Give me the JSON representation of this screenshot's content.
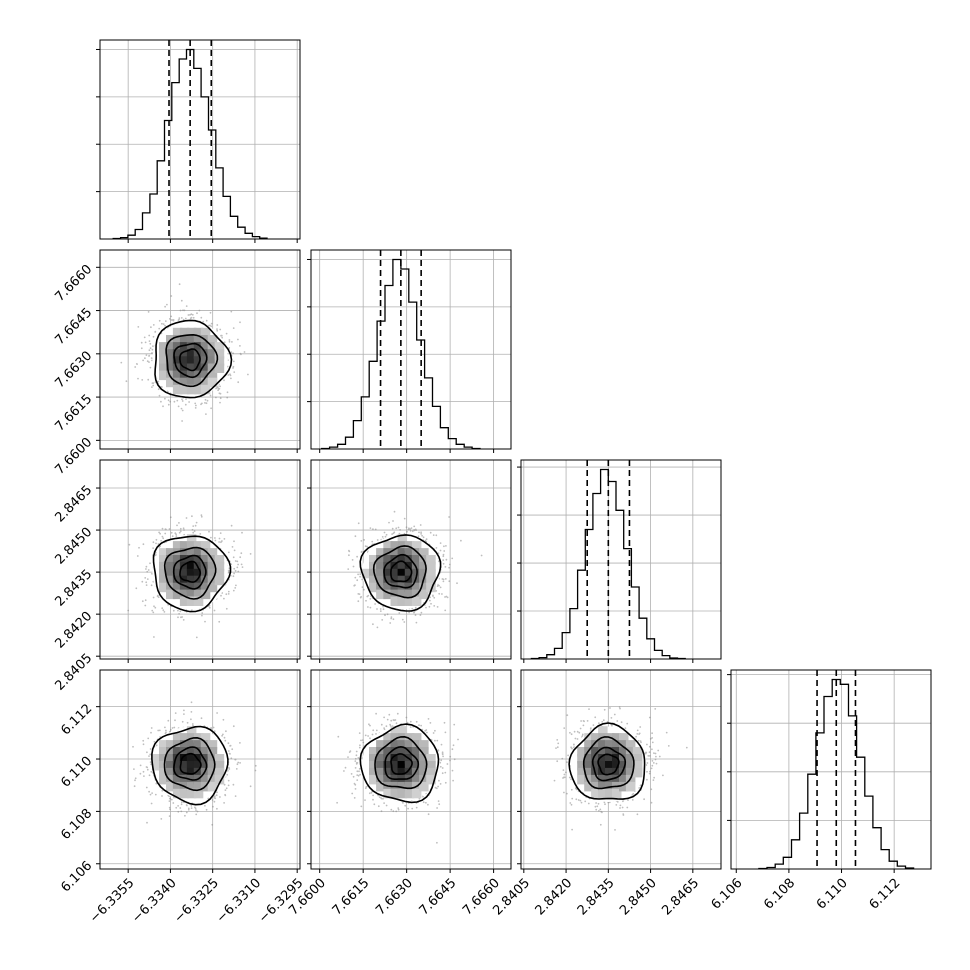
{
  "chart_data": {
    "type": "corner",
    "description_free": true,
    "grid": true,
    "n_params": 4,
    "colors": {
      "axes": "#000000",
      "grid": "#b0b0b0",
      "scatter": "#8a8a8a",
      "density_max": "#000000"
    },
    "params": [
      {
        "range": [
          -6.3365,
          -6.3294
        ],
        "ticks": [
          -6.3355,
          -6.334,
          -6.3325,
          -6.331,
          -6.3295
        ],
        "tick_labels": [
          "−6.3355",
          "−6.3340",
          "−6.3325",
          "−6.3310",
          "−6.3295"
        ],
        "mean": -6.3333,
        "sd": 0.00065,
        "quantiles": [
          -6.33405,
          -6.3333,
          -6.33255
        ]
      },
      {
        "range": [
          7.6597,
          7.6666
        ],
        "ticks": [
          7.66,
          7.6615,
          7.663,
          7.6645,
          7.666
        ],
        "tick_labels": [
          "7.6600",
          "7.6615",
          "7.6630",
          "7.6645",
          "7.6660"
        ],
        "mean": 7.6628,
        "sd": 0.00065,
        "quantiles": [
          7.6621,
          7.6628,
          7.6635
        ]
      },
      {
        "range": [
          2.8404,
          2.8475
        ],
        "ticks": [
          2.8405,
          2.842,
          2.8435,
          2.845,
          2.8465
        ],
        "tick_labels": [
          "2.8405",
          "2.8420",
          "2.8435",
          "2.8450",
          "2.8465"
        ],
        "mean": 2.8435,
        "sd": 0.00065,
        "quantiles": [
          2.84275,
          2.8435,
          2.84425
        ]
      },
      {
        "range": [
          6.1058,
          6.1134
        ],
        "ticks": [
          6.106,
          6.108,
          6.11,
          6.112
        ],
        "tick_labels": [
          "6.106",
          "6.108",
          "6.110",
          "6.112"
        ],
        "mean": 6.1098,
        "sd": 0.0007,
        "quantiles": [
          6.10907,
          6.1098,
          6.11053
        ]
      }
    ],
    "histograms": [
      [
        1,
        3,
        8,
        20,
        55,
        95,
        165,
        250,
        330,
        380,
        400,
        360,
        300,
        230,
        150,
        90,
        48,
        25,
        12,
        5,
        2
      ],
      [
        1,
        4,
        10,
        25,
        60,
        110,
        185,
        270,
        345,
        400,
        380,
        310,
        230,
        150,
        90,
        45,
        22,
        10,
        4,
        1
      ],
      [
        1,
        3,
        9,
        22,
        55,
        105,
        185,
        270,
        345,
        395,
        370,
        310,
        230,
        150,
        85,
        42,
        18,
        7,
        2,
        1
      ],
      [
        1,
        3,
        10,
        24,
        60,
        115,
        195,
        280,
        355,
        390,
        380,
        315,
        230,
        150,
        85,
        40,
        16,
        6,
        2
      ]
    ],
    "contour_levels": [
      0.12,
      0.39,
      0.68,
      0.86
    ]
  }
}
